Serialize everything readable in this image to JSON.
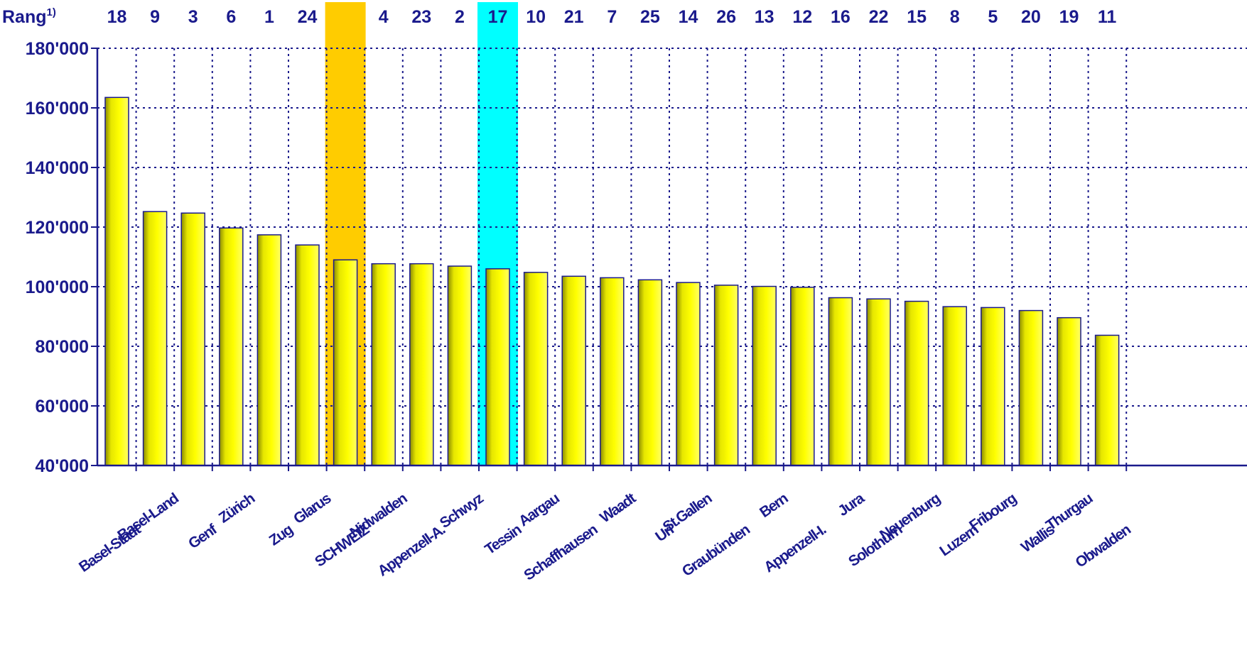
{
  "chart_data": {
    "type": "bar",
    "rank_label": "Rang",
    "rank_superscript": "1)",
    "categories": [
      "Basel-Stadt",
      "Basel-Land",
      "Genf",
      "Zürich",
      "Zug",
      "Glarus",
      "SCHWEIZ",
      "Nidwalden",
      "Appenzell-A.",
      "Schwyz",
      "Tessin",
      "Aargau",
      "Schaffhausen",
      "Waadt",
      "Uri",
      "St.Gallen",
      "Graubünden",
      "Bern",
      "Appenzell-I.",
      "Jura",
      "Solothurn",
      "Neuenburg",
      "Luzern",
      "Fribourg",
      "Wallis",
      "Thurgau",
      "Obwalden"
    ],
    "ranks": [
      "18",
      "9",
      "3",
      "6",
      "1",
      "24",
      "",
      "4",
      "23",
      "2",
      "17",
      "10",
      "21",
      "7",
      "25",
      "14",
      "26",
      "13",
      "12",
      "16",
      "22",
      "15",
      "8",
      "5",
      "20",
      "19",
      "11"
    ],
    "values": [
      163500,
      125200,
      124700,
      119700,
      117400,
      114000,
      109000,
      107700,
      107700,
      106900,
      106000,
      104800,
      103500,
      103000,
      102300,
      101400,
      100500,
      100100,
      99800,
      96300,
      95900,
      95100,
      93300,
      93000,
      92000,
      89600,
      83700
    ],
    "highlight_colors": {
      "SCHWEIZ": "#ffcc00",
      "Tessin": "#00ffff"
    },
    "ylim": [
      40000,
      180000
    ],
    "yticks": [
      "40'000",
      "60'000",
      "80'000",
      "100'000",
      "120'000",
      "140'000",
      "160'000",
      "180'000"
    ],
    "grid": true,
    "colors": {
      "bar": "#ffff00",
      "bar_edge": "#1a1a8c",
      "text": "#1a1a8c",
      "grid": "#1a1a8c"
    }
  }
}
